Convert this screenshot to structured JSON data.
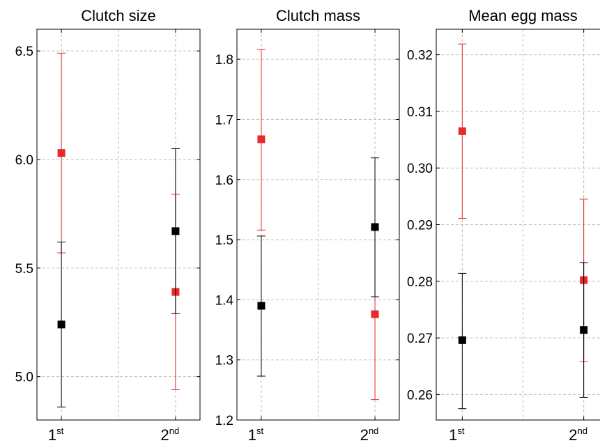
{
  "chart_data": [
    {
      "type": "scatter",
      "title": "Clutch size",
      "categories": [
        "1",
        "2"
      ],
      "category_superscripts": [
        "st",
        "nd"
      ],
      "ylim": [
        4.8,
        6.6
      ],
      "yticks": [
        5.0,
        5.5,
        6.0,
        6.5
      ],
      "ytick_labels": [
        "5.0",
        "5.5",
        "6.0",
        "6.5"
      ],
      "grid": true,
      "series": [
        {
          "color": "#e8292a",
          "values": [
            6.03,
            5.39
          ],
          "err_low": [
            5.57,
            4.94
          ],
          "err_high": [
            6.49,
            5.84
          ]
        },
        {
          "color": "#000000",
          "values": [
            5.24,
            5.67
          ],
          "err_low": [
            4.86,
            5.29
          ],
          "err_high": [
            5.62,
            6.05
          ]
        }
      ]
    },
    {
      "type": "scatter",
      "title": "Clutch mass",
      "categories": [
        "1",
        "2"
      ],
      "category_superscripts": [
        "st",
        "nd"
      ],
      "ylim": [
        1.2,
        1.85
      ],
      "yticks": [
        1.2,
        1.3,
        1.4,
        1.5,
        1.6,
        1.7,
        1.8
      ],
      "ytick_labels": [
        "1.2",
        "1.3",
        "1.4",
        "1.5",
        "1.6",
        "1.7",
        "1.8"
      ],
      "grid": true,
      "series": [
        {
          "color": "#e8292a",
          "values": [
            1.667,
            1.376
          ],
          "err_low": [
            1.516,
            1.234
          ],
          "err_high": [
            1.816,
            1.519
          ]
        },
        {
          "color": "#000000",
          "values": [
            1.39,
            1.521
          ],
          "err_low": [
            1.273,
            1.405
          ],
          "err_high": [
            1.506,
            1.636
          ]
        }
      ]
    },
    {
      "type": "scatter",
      "title": "Mean egg mass",
      "categories": [
        "1",
        "2"
      ],
      "category_superscripts": [
        "st",
        "nd"
      ],
      "ylim": [
        0.2555,
        0.3245
      ],
      "yticks": [
        0.26,
        0.27,
        0.28,
        0.29,
        0.3,
        0.31,
        0.32
      ],
      "ytick_labels": [
        "0.26",
        "0.27",
        "0.28",
        "0.29",
        "0.30",
        "0.31",
        "0.32"
      ],
      "grid": true,
      "series": [
        {
          "color": "#e8292a",
          "values": [
            0.3065,
            0.2802
          ],
          "err_low": [
            0.2911,
            0.2658
          ],
          "err_high": [
            0.3219,
            0.2945
          ]
        },
        {
          "color": "#000000",
          "values": [
            0.2696,
            0.2714
          ],
          "err_low": [
            0.2575,
            0.2595
          ],
          "err_high": [
            0.2814,
            0.2833
          ]
        }
      ]
    }
  ]
}
